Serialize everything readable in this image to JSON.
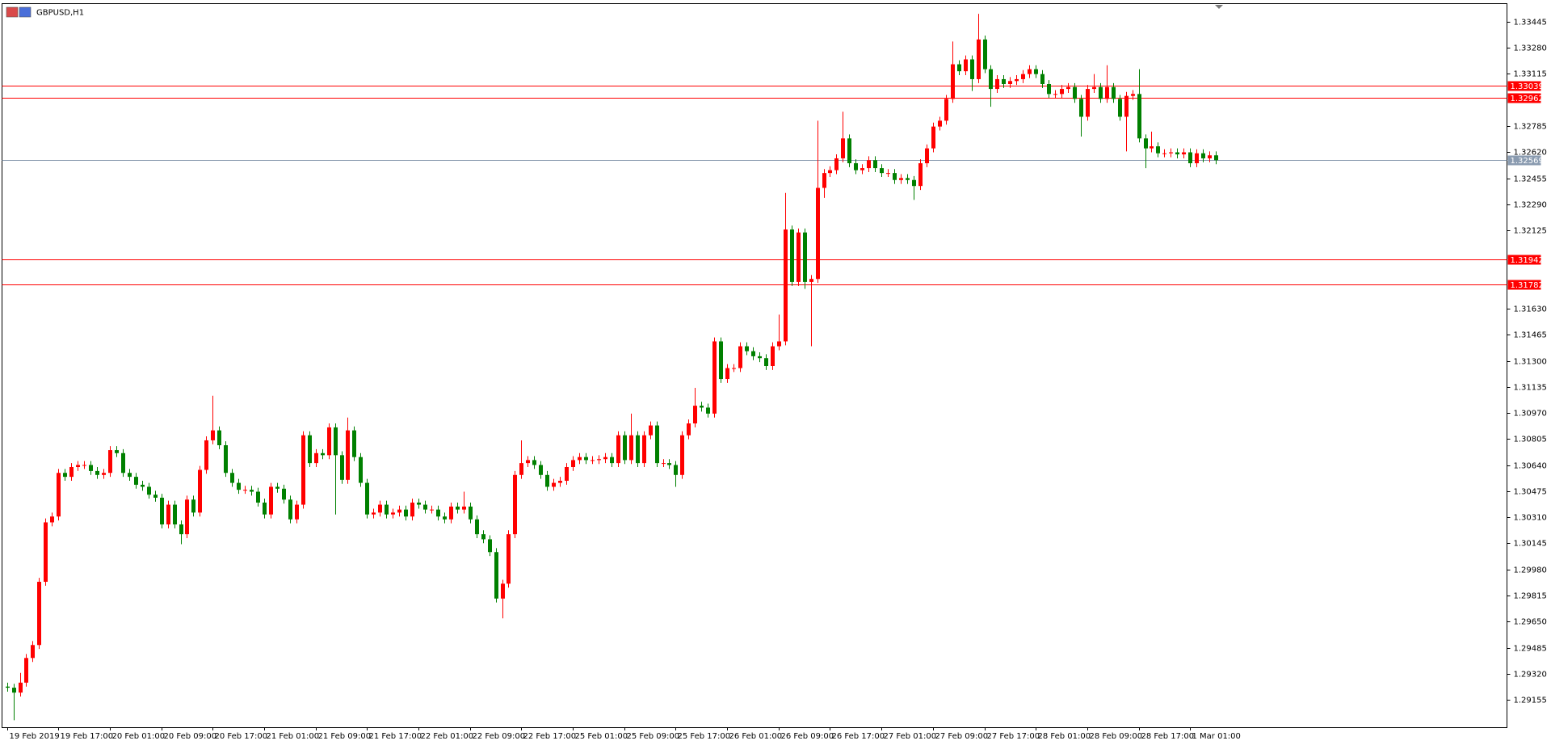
{
  "chart_data": {
    "type": "candlestick",
    "title": "GBPUSD,H1",
    "up_color": "#ff0000",
    "down_color": "#008000",
    "ylim": [
      1.28982,
      1.33552
    ],
    "yticks": [
      1.33445,
      {
        "value": 1.3328,
        "label": "1.33280"
      },
      1.33115,
      1.32785,
      {
        "value": 1.3262,
        "label": "1.32620"
      },
      1.32455,
      {
        "value": 1.3229,
        "label": "1.32290"
      },
      1.32125,
      {
        "value": 1.3163,
        "label": "1.31630"
      },
      1.31465,
      {
        "value": 1.313,
        "label": "1.31300"
      },
      1.31135,
      {
        "value": 1.3097,
        "label": "1.30970"
      },
      1.30805,
      {
        "value": 1.3064,
        "label": "1.30640"
      },
      1.30475,
      {
        "value": 1.3031,
        "label": "1.30310"
      },
      1.30145,
      {
        "value": 1.2998,
        "label": "1.29980"
      },
      1.29815,
      {
        "value": 1.2965,
        "label": "1.29650"
      },
      1.29485,
      {
        "value": 1.2932,
        "label": "1.29320"
      },
      1.29155
    ],
    "hlines": [
      {
        "value": 1.33039,
        "color": "#ff0000"
      },
      {
        "value": 1.32962,
        "color": "#ff0000"
      },
      {
        "value": 1.32569,
        "color": "#8a9bb0"
      },
      {
        "value": 1.31942,
        "color": "#ff0000"
      },
      {
        "value": 1.31782,
        "color": "#ff0000"
      }
    ],
    "x_labels": [
      "19 Feb 2019",
      "19 Feb 17:00",
      "20 Feb 01:00",
      "20 Feb 09:00",
      "20 Feb 17:00",
      "21 Feb 01:00",
      "21 Feb 09:00",
      "21 Feb 17:00",
      "22 Feb 01:00",
      "22 Feb 09:00",
      "22 Feb 17:00",
      "25 Feb 01:00",
      "25 Feb 09:00",
      "25 Feb 17:00",
      "26 Feb 01:00",
      "26 Feb 09:00",
      "26 Feb 17:00",
      "27 Feb 01:00",
      "27 Feb 09:00",
      "27 Feb 17:00",
      "28 Feb 01:00",
      "28 Feb 09:00",
      "28 Feb 17:00",
      "1 Mar 01:00"
    ],
    "open": [
      1.29239,
      1.29232,
      1.29201,
      1.29264,
      1.2942,
      1.29502,
      1.29902,
      1.30278,
      1.30315,
      1.30591,
      1.30566,
      1.30628,
      1.30641,
      1.30641,
      1.30603,
      1.30578,
      1.30591,
      1.30735,
      1.30716,
      1.30591,
      1.30566,
      1.30516,
      1.30503,
      1.30453,
      1.30434,
      1.30265,
      1.3039,
      1.30265,
      1.30203,
      1.30422,
      1.3034,
      1.3061,
      1.30797,
      1.3086,
      1.30766,
      1.30591,
      1.30528,
      1.30484,
      1.30484,
      1.30472,
      1.30403,
      1.30328,
      1.30503,
      1.30491,
      1.30422,
      1.30297,
      1.3039,
      1.30829,
      1.30653,
      1.30716,
      1.30703,
      1.30879,
      1.30703,
      1.30547,
      1.3086,
      1.30691,
      1.30528,
      1.30328,
      1.3034,
      1.3039,
      1.30328,
      1.3034,
      1.30359,
      1.30315,
      1.30403,
      1.3039,
      1.30359,
      1.30359,
      1.30315,
      1.30297,
      1.30378,
      1.30359,
      1.30378,
      1.30297,
      1.30203,
      1.30171,
      1.3009,
      1.29796,
      1.2989,
      1.30203,
      1.30578,
      1.30653,
      1.30672,
      1.30641,
      1.30578,
      1.30503,
      1.30528,
      1.30541,
      1.30628,
      1.30672,
      1.30691,
      1.30672,
      1.30672,
      1.30678,
      1.30691,
      1.30653,
      1.30829,
      1.30672,
      1.30829,
      1.30653,
      1.30829,
      1.30891,
      1.30653,
      1.30653,
      1.30641,
      1.30578,
      1.30829,
      1.30904,
      1.31016,
      1.31004,
      1.30966,
      1.31423,
      1.31185,
      1.31254,
      1.31254,
      1.31392,
      1.31361,
      1.31329,
      1.31317,
      1.31267,
      1.31392,
      1.31423,
      1.32131,
      1.31799,
      1.32112,
      1.31799,
      1.31818,
      1.32394,
      1.32488,
      1.32506,
      1.32581,
      1.32707,
      1.3255,
      1.32506,
      1.32519,
      1.32569,
      1.32519,
      1.32488,
      1.32488,
      1.32444,
      1.32456,
      1.32444,
      1.32406,
      1.3255,
      1.32644,
      1.32782,
      1.32819,
      1.32957,
      1.33176,
      1.33132,
      1.33207,
      1.33082,
      1.33333,
      1.33145,
      1.3302,
      1.33082,
      1.33051,
      1.3307,
      1.33082,
      1.33114,
      1.33145,
      1.33114,
      1.33051,
      1.32988,
      1.32988,
      1.3302,
      1.33032,
      1.32957,
      1.32844,
      1.3302,
      1.33032,
      1.32957,
      1.33032,
      1.32957,
      1.32844,
      1.32976,
      1.32988,
      1.32707,
      1.32644,
      1.32657,
      1.32613,
      1.32613,
      1.32619,
      1.32606,
      1.32619,
      1.3255,
      1.32613,
      1.32581,
      1.326
    ],
    "high": [
      1.29264,
      1.29257,
      1.29326,
      1.29445,
      1.29527,
      1.29927,
      1.30303,
      1.3034,
      1.30616,
      1.30616,
      1.30653,
      1.30666,
      1.30666,
      1.30666,
      1.30628,
      1.30616,
      1.3076,
      1.3076,
      1.30741,
      1.30616,
      1.30591,
      1.30541,
      1.30528,
      1.30478,
      1.30459,
      1.30415,
      1.30415,
      1.3029,
      1.30447,
      1.30447,
      1.30635,
      1.30822,
      1.31079,
      1.30885,
      1.30791,
      1.30616,
      1.30553,
      1.30509,
      1.30509,
      1.30497,
      1.30428,
      1.30528,
      1.30528,
      1.30516,
      1.30447,
      1.30415,
      1.30854,
      1.30854,
      1.30741,
      1.30741,
      1.30904,
      1.30904,
      1.30728,
      1.30941,
      1.30885,
      1.30716,
      1.30553,
      1.30365,
      1.30415,
      1.30415,
      1.30365,
      1.30384,
      1.30384,
      1.30428,
      1.30428,
      1.30415,
      1.30384,
      1.30384,
      1.3034,
      1.30403,
      1.30403,
      1.30472,
      1.30403,
      1.30322,
      1.30228,
      1.30196,
      1.30115,
      1.29915,
      1.30228,
      1.30603,
      1.30797,
      1.30697,
      1.30697,
      1.30666,
      1.30603,
      1.30553,
      1.30566,
      1.30653,
      1.30697,
      1.30716,
      1.30716,
      1.30697,
      1.30703,
      1.30716,
      1.30716,
      1.30854,
      1.30854,
      1.30966,
      1.30854,
      1.30854,
      1.30916,
      1.30916,
      1.30678,
      1.30678,
      1.30666,
      1.30854,
      1.30929,
      1.31129,
      1.31041,
      1.31029,
      1.31448,
      1.31448,
      1.31279,
      1.31279,
      1.31417,
      1.31417,
      1.31386,
      1.31354,
      1.31342,
      1.31417,
      1.31592,
      1.32362,
      1.32156,
      1.32137,
      1.32137,
      1.31843,
      1.32819,
      1.32513,
      1.32531,
      1.32606,
      1.32876,
      1.32732,
      1.32575,
      1.32544,
      1.32594,
      1.32594,
      1.32544,
      1.32513,
      1.32513,
      1.32481,
      1.32481,
      1.32469,
      1.32575,
      1.32669,
      1.32807,
      1.32844,
      1.32982,
      1.3332,
      1.33201,
      1.33232,
      1.33232,
      1.33495,
      1.33358,
      1.3317,
      1.33107,
      1.33107,
      1.33095,
      1.33107,
      1.33139,
      1.3317,
      1.3317,
      1.33139,
      1.33076,
      1.33013,
      1.33045,
      1.33057,
      1.33057,
      1.32982,
      1.33045,
      1.33114,
      1.33057,
      1.3317,
      1.33057,
      1.32982,
      1.33001,
      1.33013,
      1.33145,
      1.32732,
      1.3275,
      1.32682,
      1.32638,
      1.32644,
      1.32644,
      1.32644,
      1.32644,
      1.32638,
      1.32638,
      1.32625,
      1.32625
    ],
    "low": [
      1.29207,
      1.29026,
      1.29176,
      1.29239,
      1.29395,
      1.29477,
      1.29877,
      1.30253,
      1.3029,
      1.30541,
      1.30541,
      1.30603,
      1.30616,
      1.30578,
      1.30553,
      1.30553,
      1.30566,
      1.30691,
      1.30566,
      1.30541,
      1.30491,
      1.30478,
      1.30428,
      1.30409,
      1.3024,
      1.3024,
      1.3024,
      1.3014,
      1.30178,
      1.30315,
      1.30315,
      1.30585,
      1.30772,
      1.30741,
      1.30566,
      1.30503,
      1.30459,
      1.30459,
      1.30447,
      1.30378,
      1.30303,
      1.30303,
      1.30466,
      1.30397,
      1.30272,
      1.30272,
      1.30365,
      1.30628,
      1.30628,
      1.30678,
      1.30678,
      1.30328,
      1.30522,
      1.30522,
      1.30666,
      1.30503,
      1.30303,
      1.30303,
      1.30315,
      1.30303,
      1.30303,
      1.30315,
      1.3029,
      1.3029,
      1.30365,
      1.30334,
      1.30334,
      1.3029,
      1.30272,
      1.30272,
      1.30334,
      1.30334,
      1.30272,
      1.30178,
      1.30146,
      1.30065,
      1.29771,
      1.29671,
      1.29865,
      1.30178,
      1.30553,
      1.30628,
      1.30616,
      1.30553,
      1.30478,
      1.30478,
      1.30503,
      1.30516,
      1.30603,
      1.30647,
      1.30647,
      1.30647,
      1.30647,
      1.30653,
      1.30628,
      1.30628,
      1.30647,
      1.30647,
      1.30628,
      1.30628,
      1.30804,
      1.30628,
      1.30628,
      1.30616,
      1.30503,
      1.30553,
      1.30804,
      1.30879,
      1.30979,
      1.30941,
      1.30941,
      1.3116,
      1.3116,
      1.31229,
      1.31229,
      1.31336,
      1.31304,
      1.31292,
      1.31242,
      1.31242,
      1.31367,
      1.31398,
      1.31774,
      1.31774,
      1.31755,
      1.31392,
      1.31793,
      1.32331,
      1.32463,
      1.32481,
      1.32556,
      1.32525,
      1.32481,
      1.32481,
      1.32494,
      1.32494,
      1.32463,
      1.32463,
      1.32419,
      1.32419,
      1.32419,
      1.32318,
      1.32381,
      1.32525,
      1.32619,
      1.32757,
      1.32794,
      1.32932,
      1.33107,
      1.33107,
      1.33007,
      1.33057,
      1.3312,
      1.32907,
      1.32995,
      1.33026,
      1.33026,
      1.33045,
      1.33057,
      1.33089,
      1.33089,
      1.33026,
      1.32963,
      1.32963,
      1.32963,
      1.32995,
      1.32932,
      1.32719,
      1.32819,
      1.32995,
      1.32932,
      1.32932,
      1.32932,
      1.32819,
      1.32625,
      1.32951,
      1.32682,
      1.32519,
      1.32619,
      1.32588,
      1.32588,
      1.32588,
      1.32581,
      1.32581,
      1.32525,
      1.32525,
      1.32556,
      1.32556,
      1.32544
    ],
    "close": [
      1.29232,
      1.29201,
      1.29264,
      1.2942,
      1.29502,
      1.29902,
      1.30278,
      1.30315,
      1.30591,
      1.30566,
      1.30628,
      1.30641,
      1.30641,
      1.30603,
      1.30578,
      1.30591,
      1.30735,
      1.30716,
      1.30591,
      1.30566,
      1.30516,
      1.30503,
      1.30453,
      1.30434,
      1.30265,
      1.3039,
      1.30265,
      1.30203,
      1.30422,
      1.3034,
      1.3061,
      1.30797,
      1.3086,
      1.30766,
      1.30591,
      1.30528,
      1.30484,
      1.30484,
      1.30472,
      1.30403,
      1.30328,
      1.30503,
      1.30491,
      1.30422,
      1.30297,
      1.3039,
      1.30829,
      1.30653,
      1.30716,
      1.30703,
      1.30879,
      1.30703,
      1.30547,
      1.3086,
      1.30691,
      1.30528,
      1.30328,
      1.3034,
      1.3039,
      1.30328,
      1.3034,
      1.30359,
      1.30315,
      1.30403,
      1.3039,
      1.30359,
      1.30359,
      1.30315,
      1.30297,
      1.30378,
      1.30359,
      1.30378,
      1.30297,
      1.30203,
      1.30171,
      1.3009,
      1.29796,
      1.2989,
      1.30203,
      1.30578,
      1.30653,
      1.30672,
      1.30641,
      1.30578,
      1.30503,
      1.30528,
      1.30541,
      1.30628,
      1.30672,
      1.30691,
      1.30672,
      1.30672,
      1.30678,
      1.30691,
      1.30653,
      1.30829,
      1.30672,
      1.30829,
      1.30653,
      1.30829,
      1.30891,
      1.30653,
      1.30653,
      1.30641,
      1.30578,
      1.30829,
      1.30904,
      1.31016,
      1.31004,
      1.30966,
      1.31423,
      1.31185,
      1.31254,
      1.31254,
      1.31392,
      1.31361,
      1.31329,
      1.31317,
      1.31267,
      1.31392,
      1.31423,
      1.32131,
      1.31799,
      1.32112,
      1.31799,
      1.31818,
      1.32394,
      1.32488,
      1.32506,
      1.32581,
      1.32707,
      1.3255,
      1.32506,
      1.32519,
      1.32569,
      1.32519,
      1.32488,
      1.32488,
      1.32444,
      1.32456,
      1.32444,
      1.32406,
      1.3255,
      1.32644,
      1.32782,
      1.32819,
      1.32957,
      1.33176,
      1.33132,
      1.33207,
      1.33082,
      1.33333,
      1.33145,
      1.3302,
      1.33082,
      1.33051,
      1.3307,
      1.33082,
      1.33114,
      1.33145,
      1.33114,
      1.33051,
      1.32988,
      1.32988,
      1.3302,
      1.33032,
      1.32957,
      1.32844,
      1.3302,
      1.33032,
      1.32957,
      1.33032,
      1.32957,
      1.32844,
      1.32976,
      1.32988,
      1.32707,
      1.32644,
      1.32657,
      1.32613,
      1.32613,
      1.32619,
      1.32606,
      1.32619,
      1.3255,
      1.32613,
      1.32581,
      1.326,
      1.32569
    ]
  }
}
